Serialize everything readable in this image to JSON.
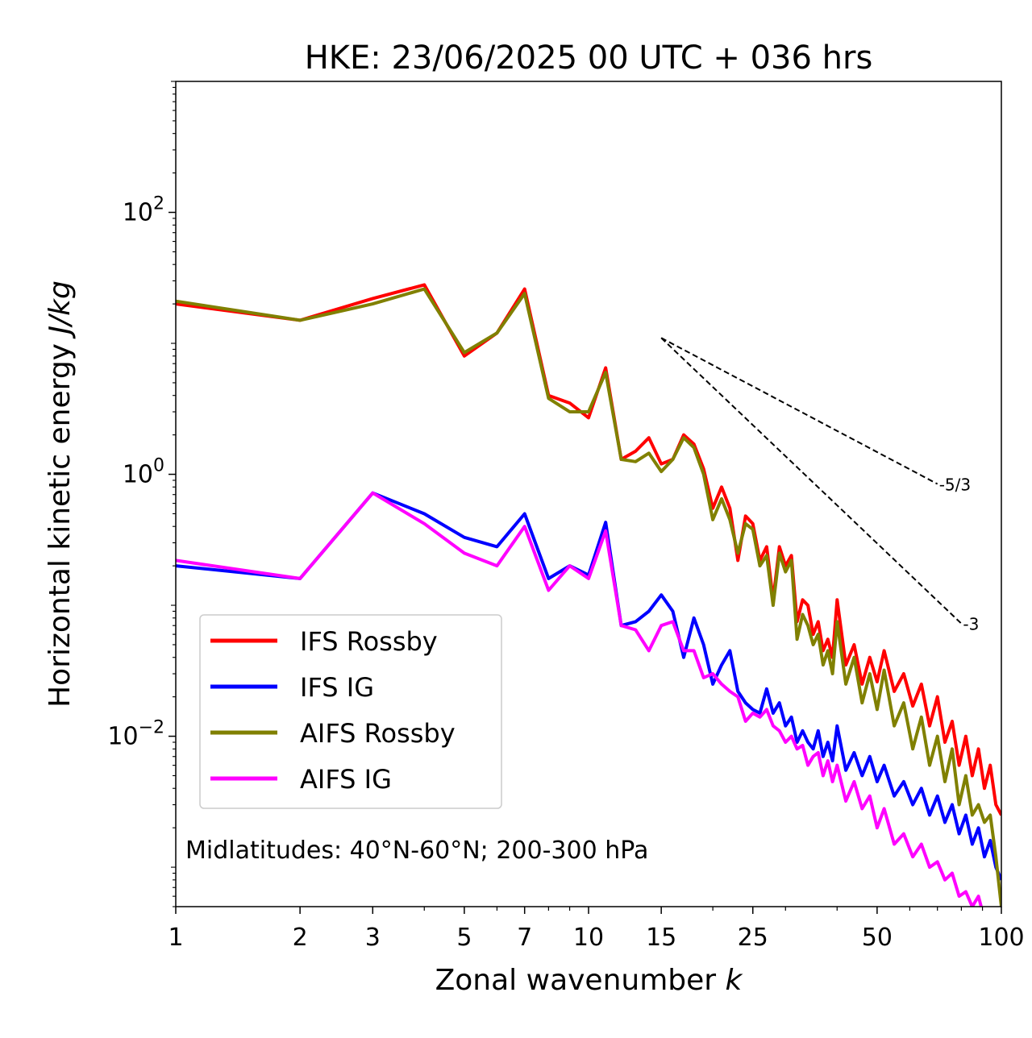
{
  "chart_data": {
    "type": "line",
    "title": "HKE: 23/06/2025 00 UTC + 036 hrs",
    "xlabel": "Zonal wavenumber",
    "xlabel_var": "k",
    "ylabel": "Horizontal kinetic energy",
    "ylabel_unit": "J/kg",
    "xscale": "log",
    "yscale": "log",
    "xlim": [
      1,
      100
    ],
    "ylim": [
      0.0005,
      1000
    ],
    "xticks": [
      1,
      2,
      3,
      5,
      7,
      10,
      15,
      25,
      50,
      100
    ],
    "xtick_labels": [
      "1",
      "2",
      "3",
      "5",
      "7",
      "10",
      "15",
      "25",
      "50",
      "100"
    ],
    "yticks": [
      0.01,
      1,
      100
    ],
    "ytick_labels": [
      {
        "base": "10",
        "exp": "−2"
      },
      {
        "base": "10",
        "exp": "0"
      },
      {
        "base": "10",
        "exp": "2"
      }
    ],
    "annotation": "Midlatitudes: 40°N-60°N; 200-300 hPa",
    "legend_position": "lower-left",
    "grid": false,
    "reference_lines": [
      {
        "label": "-5/3",
        "slope": -1.6667,
        "x_start": 15,
        "y_start": 11,
        "x_end": 70
      },
      {
        "label": "-3",
        "slope": -3,
        "x_start": 15,
        "y_start": 11,
        "x_end": 80
      }
    ],
    "series": [
      {
        "name": "IFS Rossby",
        "color": "#ff0000",
        "x": [
          1,
          2,
          3,
          4,
          5,
          6,
          7,
          8,
          9,
          10,
          11,
          12,
          13,
          14,
          15,
          16,
          17,
          18,
          19,
          20,
          21,
          22,
          23,
          24,
          25,
          26,
          27,
          28,
          29,
          30,
          31,
          32,
          33,
          34,
          35,
          36,
          37,
          38,
          39,
          40,
          42,
          44,
          46,
          48,
          50,
          52,
          55,
          58,
          61,
          64,
          67,
          70,
          73,
          76,
          79,
          82,
          85,
          88,
          91,
          94,
          97,
          100
        ],
        "y": [
          20,
          15,
          22,
          28,
          8,
          12,
          26,
          4.0,
          3.5,
          2.7,
          6.5,
          1.3,
          1.5,
          1.9,
          1.2,
          1.3,
          2.0,
          1.7,
          1.1,
          0.55,
          0.8,
          0.55,
          0.22,
          0.48,
          0.42,
          0.22,
          0.28,
          0.11,
          0.28,
          0.2,
          0.24,
          0.075,
          0.11,
          0.1,
          0.06,
          0.075,
          0.045,
          0.055,
          0.04,
          0.11,
          0.035,
          0.05,
          0.025,
          0.04,
          0.026,
          0.045,
          0.022,
          0.03,
          0.017,
          0.025,
          0.012,
          0.02,
          0.009,
          0.013,
          0.006,
          0.01,
          0.005,
          0.008,
          0.004,
          0.006,
          0.003,
          0.0025
        ]
      },
      {
        "name": "IFS IG",
        "color": "#0000ff",
        "x": [
          1,
          2,
          3,
          4,
          5,
          6,
          7,
          8,
          9,
          10,
          11,
          12,
          13,
          14,
          15,
          16,
          17,
          18,
          19,
          20,
          21,
          22,
          23,
          24,
          25,
          26,
          27,
          28,
          29,
          30,
          31,
          32,
          33,
          34,
          35,
          36,
          37,
          38,
          39,
          40,
          42,
          44,
          46,
          48,
          50,
          52,
          55,
          58,
          61,
          64,
          67,
          70,
          73,
          76,
          79,
          82,
          85,
          88,
          91,
          94,
          97,
          100
        ],
        "y": [
          0.2,
          0.16,
          0.72,
          0.5,
          0.33,
          0.28,
          0.5,
          0.16,
          0.2,
          0.17,
          0.43,
          0.07,
          0.075,
          0.09,
          0.12,
          0.09,
          0.04,
          0.08,
          0.05,
          0.025,
          0.035,
          0.045,
          0.022,
          0.018,
          0.016,
          0.015,
          0.023,
          0.015,
          0.018,
          0.012,
          0.014,
          0.009,
          0.011,
          0.009,
          0.008,
          0.011,
          0.007,
          0.009,
          0.0065,
          0.012,
          0.0055,
          0.0075,
          0.005,
          0.007,
          0.0045,
          0.006,
          0.0035,
          0.0045,
          0.003,
          0.004,
          0.0025,
          0.0035,
          0.0022,
          0.003,
          0.0018,
          0.0025,
          0.0015,
          0.002,
          0.0012,
          0.0016,
          0.001,
          0.0008
        ]
      },
      {
        "name": "AIFS Rossby",
        "color": "#808000",
        "x": [
          1,
          2,
          3,
          4,
          5,
          6,
          7,
          8,
          9,
          10,
          11,
          12,
          13,
          14,
          15,
          16,
          17,
          18,
          19,
          20,
          21,
          22,
          23,
          24,
          25,
          26,
          27,
          28,
          29,
          30,
          31,
          32,
          33,
          34,
          35,
          36,
          37,
          38,
          39,
          40,
          42,
          44,
          46,
          48,
          50,
          52,
          55,
          58,
          61,
          64,
          67,
          70,
          73,
          76,
          79,
          82,
          85,
          88,
          91,
          94,
          97,
          100
        ],
        "y": [
          21,
          15,
          20,
          26,
          8.5,
          12,
          24,
          3.8,
          3.0,
          3.0,
          6.0,
          1.3,
          1.25,
          1.45,
          1.05,
          1.3,
          1.9,
          1.6,
          1.0,
          0.45,
          0.65,
          0.45,
          0.25,
          0.42,
          0.38,
          0.2,
          0.24,
          0.1,
          0.25,
          0.18,
          0.22,
          0.055,
          0.085,
          0.07,
          0.05,
          0.06,
          0.035,
          0.045,
          0.03,
          0.075,
          0.025,
          0.04,
          0.018,
          0.03,
          0.016,
          0.032,
          0.012,
          0.018,
          0.008,
          0.014,
          0.006,
          0.01,
          0.0045,
          0.008,
          0.003,
          0.005,
          0.0025,
          0.003,
          0.0022,
          0.0025,
          0.0012,
          0.0005
        ]
      },
      {
        "name": "AIFS IG",
        "color": "#ff00ff",
        "x": [
          1,
          2,
          3,
          4,
          5,
          6,
          7,
          8,
          9,
          10,
          11,
          12,
          13,
          14,
          15,
          16,
          17,
          18,
          19,
          20,
          21,
          22,
          23,
          24,
          25,
          26,
          27,
          28,
          29,
          30,
          31,
          32,
          33,
          34,
          35,
          36,
          37,
          38,
          39,
          40,
          42,
          44,
          46,
          48,
          50,
          52,
          55,
          58,
          61,
          64,
          67,
          70,
          73,
          76,
          79,
          82,
          85,
          88,
          91
        ],
        "y": [
          0.22,
          0.16,
          0.72,
          0.42,
          0.25,
          0.2,
          0.4,
          0.13,
          0.2,
          0.16,
          0.37,
          0.07,
          0.065,
          0.045,
          0.07,
          0.075,
          0.045,
          0.045,
          0.028,
          0.03,
          0.025,
          0.022,
          0.02,
          0.013,
          0.015,
          0.014,
          0.016,
          0.012,
          0.011,
          0.009,
          0.01,
          0.008,
          0.0085,
          0.006,
          0.007,
          0.0075,
          0.005,
          0.0065,
          0.0045,
          0.006,
          0.0032,
          0.0045,
          0.0028,
          0.0035,
          0.002,
          0.0028,
          0.0015,
          0.0018,
          0.0012,
          0.0015,
          0.001,
          0.0011,
          0.0008,
          0.0009,
          0.0006,
          0.00065,
          0.0005,
          0.0006,
          0.0004
        ]
      }
    ]
  }
}
